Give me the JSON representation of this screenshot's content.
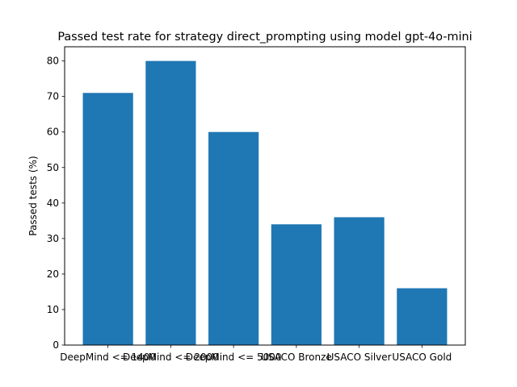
{
  "chart_data": {
    "type": "bar",
    "title": "Passed test rate for strategy direct_prompting using model gpt-4o-mini",
    "xlabel": "",
    "ylabel": "Passed tests (%)",
    "categories": [
      "DeepMind <= 1400",
      "DeepMind <= 2000",
      "DeepMind <= 5000",
      "USACO Bronze",
      "USACO Silver",
      "USACO Gold"
    ],
    "values": [
      71,
      80,
      60,
      34,
      36,
      16
    ],
    "ylim": [
      0,
      84
    ],
    "yticks": [
      0,
      10,
      20,
      30,
      40,
      50,
      60,
      70,
      80
    ],
    "bar_color": "#1f77b4",
    "grid": false,
    "legend": "none"
  }
}
